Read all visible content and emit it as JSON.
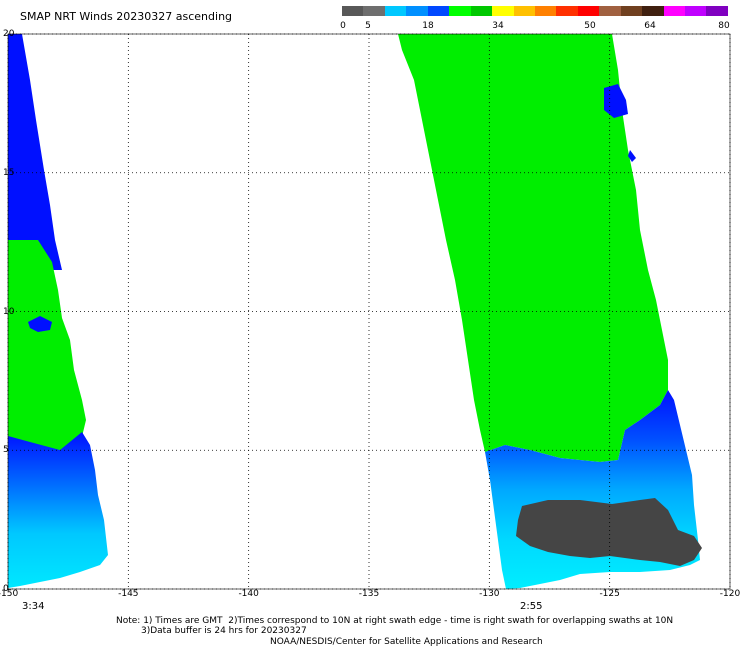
{
  "title": "SMAP NRT Winds 20230327 ascending",
  "colorbar": {
    "labels": [
      "0",
      "5",
      "18",
      "34",
      "50",
      "64",
      "80"
    ],
    "segments": [
      "#585858",
      "#6e6e6e",
      "#00c8ff",
      "#0090ff",
      "#0048ff",
      "#00ff00",
      "#00c800",
      "#ffff00",
      "#ffc000",
      "#ff8000",
      "#ff3000",
      "#ff0000",
      "#a06040",
      "#704020",
      "#402010",
      "#ff00ff",
      "#c000ff",
      "#8000c0"
    ]
  },
  "map": {
    "x_ticks": [
      "-150",
      "-145",
      "-140",
      "-135",
      "-130",
      "-125",
      "-120"
    ],
    "y_ticks": [
      "0",
      "5",
      "10",
      "15",
      "20"
    ],
    "lon_range": [
      -150,
      -120
    ],
    "lat_range": [
      0,
      20
    ],
    "colors": {
      "green": "#00ee00",
      "blue": "#0010ff",
      "cyan": "#00e8ff",
      "gray": "#454545",
      "grid": "#000000"
    }
  },
  "swaths": [
    {
      "time": "3:34"
    },
    {
      "time": "2:55"
    }
  ],
  "notes": [
    "Note: 1) Times are GMT  2)Times correspond to 10N at right swath edge - time is right swath for overlapping swaths at 10N",
    "3)Data buffer is 24 hrs for 20230327",
    "NOAA/NESDIS/Center for Satellite Applications and Research"
  ]
}
